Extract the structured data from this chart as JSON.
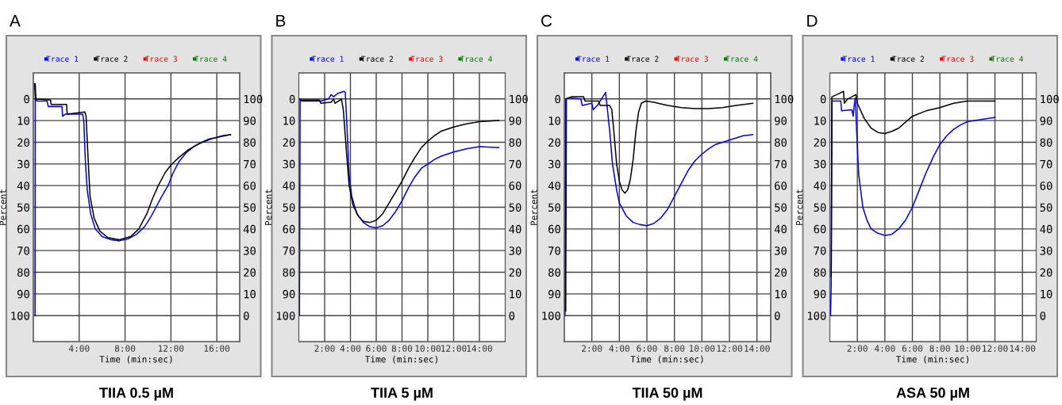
{
  "chart_data": [
    {
      "type": "line",
      "title": "TIIA 0.5 µM",
      "annotations": [
        "A"
      ],
      "xlabel": "Time (min:sec)",
      "ylabel": "Percent",
      "xlim": [
        0,
        18
      ],
      "xticks": [
        {
          "value": 4,
          "label": "4:00"
        },
        {
          "value": 8,
          "label": "8:00"
        },
        {
          "value": 12,
          "label": "12:00"
        },
        {
          "value": 16,
          "label": "16:00"
        }
      ],
      "ylim": [
        112,
        -12
      ],
      "yticks": [
        0,
        10,
        20,
        30,
        40,
        50,
        60,
        70,
        80,
        90,
        100
      ],
      "y2lim": [
        -12,
        112
      ],
      "y2ticks": [
        0,
        10,
        20,
        30,
        40,
        50,
        60,
        70,
        80,
        90,
        100
      ],
      "grid": true,
      "legend": "top",
      "line_style": "solid",
      "series": [
        {
          "name": "Trace 1",
          "color": "#0000ff",
          "x": [
            0.15,
            0.17,
            0.22,
            0.3,
            1.2,
            1.3,
            2.5,
            2.55,
            2.8,
            4.3,
            4.4,
            4.55,
            4.7,
            5.0,
            5.4,
            6.0,
            6.8,
            7.5,
            8.3,
            9.0,
            9.7,
            10.3,
            10.7,
            11.2,
            11.75,
            12.2,
            12.7,
            13.3,
            14.0,
            14.7,
            15.3,
            16.2,
            17.2
          ],
          "values": [
            100,
            -7,
            0,
            1,
            1,
            3.5,
            3.5,
            8,
            7,
            7,
            10,
            30,
            42,
            53,
            60,
            63.5,
            65,
            65.5,
            64.5,
            62.5,
            59,
            54,
            50,
            45,
            40,
            34,
            29,
            25,
            22,
            20,
            18.5,
            17.5,
            16.5
          ]
        },
        {
          "name": "Trace 2",
          "color": "#000000",
          "x": [
            0.1,
            0.2,
            1.5,
            1.55,
            2.9,
            2.95,
            4.5,
            4.6,
            4.8,
            4.95,
            5.3,
            5.8,
            6.5,
            7.5,
            8.5,
            9.2,
            9.9,
            10.4,
            10.9,
            11.5,
            12.0,
            12.7,
            13.5,
            14.5,
            15.5,
            16.5,
            17.2
          ],
          "values": [
            -7,
            0,
            0.5,
            2.5,
            2.5,
            7,
            6,
            8,
            30,
            45,
            55,
            61,
            64,
            65,
            63.5,
            60,
            53,
            46,
            40,
            34,
            30.5,
            27,
            23.5,
            20.5,
            18.5,
            17,
            16.5
          ]
        },
        {
          "name": "Trace 3",
          "color": "#ff0000"
        },
        {
          "name": "Trace 4",
          "color": "#008000"
        }
      ]
    },
    {
      "type": "line",
      "title": "TIIA 5 µM",
      "annotations": [
        "B"
      ],
      "xlabel": "Time (min:sec)",
      "ylabel": "Percent",
      "xlim": [
        0,
        16
      ],
      "xticks": [
        {
          "value": 2,
          "label": "2:00"
        },
        {
          "value": 4,
          "label": "4:00"
        },
        {
          "value": 6,
          "label": "6:00"
        },
        {
          "value": 8,
          "label": "8:00"
        },
        {
          "value": 10,
          "label": "10:00"
        },
        {
          "value": 12,
          "label": "12:00"
        },
        {
          "value": 14,
          "label": "14:00"
        }
      ],
      "ylim": [
        112,
        -12
      ],
      "yticks": [
        0,
        10,
        20,
        30,
        40,
        50,
        60,
        70,
        80,
        90,
        100
      ],
      "y2lim": [
        -12,
        112
      ],
      "y2ticks": [
        0,
        10,
        20,
        30,
        40,
        50,
        60,
        70,
        80,
        90,
        100
      ],
      "grid": true,
      "legend": "top",
      "line_style": "solid",
      "series": [
        {
          "name": "Trace 1",
          "color": "#0000ff",
          "x": [
            0.05,
            0.1,
            0.2,
            1.7,
            2.3,
            2.5,
            2.7,
            3.0,
            3.5,
            3.6,
            3.75,
            3.9,
            4.1,
            4.5,
            5.0,
            5.5,
            6.0,
            6.5,
            7.0,
            7.5,
            8.0,
            8.5,
            9.0,
            9.5,
            10.0,
            10.5,
            11.0,
            12.0,
            13.0,
            14.0,
            15.5
          ],
          "values": [
            100,
            0,
            1,
            1,
            0,
            -2,
            -1,
            -2.5,
            -3.5,
            -3,
            15,
            35,
            45,
            53,
            57,
            59,
            59.5,
            58.5,
            56,
            52,
            47,
            41,
            36,
            32,
            30,
            28,
            26.5,
            24.5,
            23,
            22,
            22.5
          ]
        },
        {
          "name": "Trace 2",
          "color": "#000000",
          "x": [
            0.05,
            0.2,
            1.6,
            1.7,
            2.5,
            2.7,
            2.8,
            3.2,
            3.3,
            3.45,
            3.7,
            3.9,
            4.2,
            4.6,
            5.0,
            5.5,
            6.0,
            6.5,
            7.0,
            7.5,
            8.0,
            8.5,
            9.0,
            9.5,
            10.0,
            10.5,
            11.0,
            12.0,
            13.0,
            14.0,
            15.5
          ],
          "values": [
            0,
            0.5,
            0.5,
            2,
            1.5,
            0,
            2,
            0.5,
            0,
            5,
            25,
            40,
            49,
            54,
            56.5,
            57,
            56,
            53,
            48,
            43,
            38,
            32,
            27,
            22.5,
            19.5,
            17,
            15,
            13,
            11.5,
            10.5,
            10
          ]
        },
        {
          "name": "Trace 3",
          "color": "#ff0000"
        },
        {
          "name": "Trace 4",
          "color": "#008000"
        }
      ]
    },
    {
      "type": "line",
      "title": "TIIA 50 µM",
      "annotations": [
        "C"
      ],
      "xlabel": "Time (min:sec)",
      "ylabel": "Percent",
      "xlim": [
        0,
        15
      ],
      "xticks": [
        {
          "value": 2,
          "label": "2:00"
        },
        {
          "value": 4,
          "label": "4:00"
        },
        {
          "value": 6,
          "label": "6:00"
        },
        {
          "value": 8,
          "label": "8:00"
        },
        {
          "value": 10,
          "label": "10:00"
        },
        {
          "value": 12,
          "label": "12:00"
        },
        {
          "value": 14,
          "label": "14:00"
        }
      ],
      "ylim": [
        112,
        -12
      ],
      "yticks": [
        0,
        10,
        20,
        30,
        40,
        50,
        60,
        70,
        80,
        90,
        100
      ],
      "y2lim": [
        -12,
        112
      ],
      "y2ticks": [
        0,
        10,
        20,
        30,
        40,
        50,
        60,
        70,
        80,
        90,
        100
      ],
      "grid": true,
      "legend": "top",
      "line_style": "solid",
      "series": [
        {
          "name": "Trace 1",
          "color": "#0000ff",
          "x": [
            0.05,
            0.1,
            0.3,
            1.2,
            1.3,
            2.0,
            2.1,
            2.4,
            2.6,
            3.0,
            3.1,
            3.3,
            3.5,
            3.8,
            4.0,
            4.5,
            5.0,
            5.5,
            6.0,
            6.5,
            7.0,
            7.5,
            8.0,
            8.5,
            9.0,
            9.5,
            10.0,
            10.5,
            11.0,
            12.0,
            13.0,
            13.7
          ],
          "values": [
            100,
            0,
            -0.5,
            0,
            3,
            2,
            5,
            3,
            1,
            -3,
            3,
            15,
            30,
            42,
            48,
            54,
            57,
            58,
            58.5,
            57.5,
            55,
            51,
            45,
            39,
            33,
            28.5,
            25.5,
            23,
            21,
            19,
            17,
            16.5
          ]
        },
        {
          "name": "Trace 2",
          "color": "#000000",
          "x": [
            0.1,
            0.15,
            0.5,
            1.4,
            1.5,
            2.5,
            2.6,
            3.3,
            3.45,
            3.6,
            3.8,
            4.0,
            4.2,
            4.4,
            4.6,
            4.8,
            5.0,
            5.2,
            5.4,
            5.6,
            5.9,
            6.5,
            7.5,
            8.5,
            9.5,
            10.5,
            11.5,
            12.5,
            13.7
          ],
          "values": [
            98,
            0,
            -1,
            -1,
            1,
            1,
            3,
            3,
            5,
            15,
            30,
            38,
            42,
            43.5,
            42,
            37,
            28,
            15,
            6,
            2,
            1,
            1.5,
            3,
            4,
            4.5,
            4.5,
            4,
            3,
            2
          ]
        },
        {
          "name": "Trace 3",
          "color": "#ff0000"
        },
        {
          "name": "Trace 4",
          "color": "#008000"
        }
      ]
    },
    {
      "type": "line",
      "title": "ASA 50 µM",
      "annotations": [
        "D"
      ],
      "xlabel": "Time (min:sec)",
      "ylabel": "Percent",
      "xlim": [
        0,
        15
      ],
      "xticks": [
        {
          "value": 2,
          "label": "2:00"
        },
        {
          "value": 4,
          "label": "4:00"
        },
        {
          "value": 6,
          "label": "6:00"
        },
        {
          "value": 8,
          "label": "8:00"
        },
        {
          "value": 10,
          "label": "10:00"
        },
        {
          "value": 12,
          "label": "12:00"
        },
        {
          "value": 14,
          "label": "14:00"
        }
      ],
      "ylim": [
        112,
        -12
      ],
      "yticks": [
        0,
        10,
        20,
        30,
        40,
        50,
        60,
        70,
        80,
        90,
        100
      ],
      "y2lim": [
        -12,
        112
      ],
      "y2ticks": [
        0,
        10,
        20,
        30,
        40,
        50,
        60,
        70,
        80,
        90,
        100
      ],
      "grid": true,
      "legend": "top",
      "line_style": "solid",
      "series": [
        {
          "name": "Trace 1",
          "color": "#0000ff",
          "x": [
            0.05,
            0.1,
            0.15,
            0.8,
            0.85,
            1.6,
            1.7,
            1.75,
            1.85,
            1.95,
            2.1,
            2.4,
            2.7,
            3.0,
            3.5,
            4.0,
            4.5,
            5.0,
            5.5,
            6.0,
            6.5,
            7.0,
            7.5,
            8.0,
            8.5,
            9.0,
            9.5,
            10.0,
            11.0,
            12.0
          ],
          "values": [
            100,
            86,
            1,
            1,
            5.5,
            5,
            8,
            4,
            -0.5,
            15,
            35,
            50,
            56,
            60,
            62,
            63,
            62.5,
            60,
            56,
            50,
            42,
            34,
            27,
            21,
            17,
            14,
            12,
            10.5,
            9.5,
            8.5
          ]
        },
        {
          "name": "Trace 2",
          "color": "#000000",
          "x": [
            0.1,
            0.15,
            0.5,
            1.0,
            1.05,
            1.3,
            1.9,
            2.0,
            2.5,
            3.0,
            3.5,
            4.0,
            4.5,
            5.0,
            6.0,
            7.0,
            8.0,
            9.0,
            10.0,
            11.0,
            12.0
          ],
          "values": [
            82,
            -1,
            -2,
            -3.5,
            2,
            0,
            -2,
            2,
            9,
            13.5,
            15.5,
            16,
            15,
            13.5,
            8,
            5.5,
            4,
            2,
            1,
            1,
            1
          ]
        },
        {
          "name": "Trace 3",
          "color": "#ff0000"
        },
        {
          "name": "Trace 4",
          "color": "#008000"
        }
      ]
    }
  ]
}
